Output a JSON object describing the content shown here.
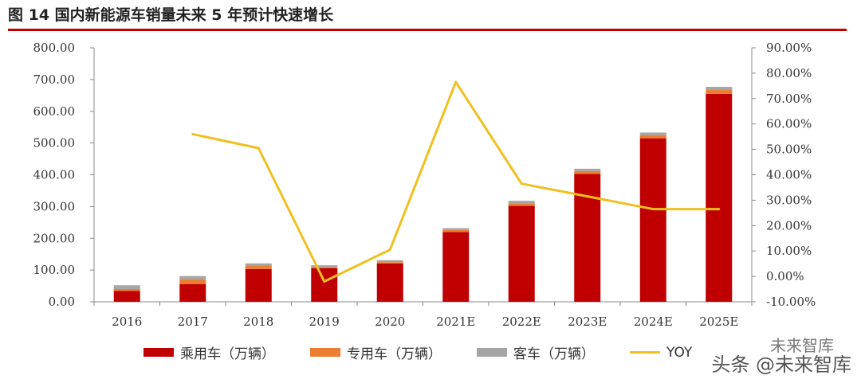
{
  "title": "图  14  国内新能源车销量未来 5 年预计快速增长",
  "watermark": "头条 @未来智库",
  "watermark_top": "未来智库",
  "colors": {
    "passenger": "#c00000",
    "special": "#ed7d31",
    "bus": "#a5a5a5",
    "yoy": "#f0c020",
    "rule": "#c00000"
  },
  "chart_data": {
    "type": "bar",
    "categories": [
      "2016",
      "2017",
      "2018",
      "2019",
      "2020",
      "2021E",
      "2022E",
      "2023E",
      "2024E",
      "2025E"
    ],
    "series": [
      {
        "name": "乘用车（万辆）",
        "values": [
          34,
          56,
          103,
          106,
          121,
          220,
          302,
          403,
          515,
          655
        ]
      },
      {
        "name": "专用车（万辆）",
        "values": [
          6,
          15,
          12,
          4,
          4,
          6,
          8,
          9,
          10,
          12
        ]
      },
      {
        "name": "客车（万辆）",
        "values": [
          12,
          10,
          6,
          5,
          6,
          6,
          8,
          7,
          8,
          10
        ]
      },
      {
        "name": "YOY",
        "axis": "right",
        "type": "line",
        "values": [
          null,
          56,
          50.5,
          -2,
          10.5,
          76.5,
          36.5,
          31.5,
          26.5,
          26.5
        ]
      }
    ],
    "ylim": [
      0,
      800
    ],
    "y_ticks": [
      "800.00",
      "700.00",
      "600.00",
      "500.00",
      "400.00",
      "300.00",
      "200.00",
      "100.00",
      "0.00"
    ],
    "y2lim": [
      -10,
      90
    ],
    "y2_ticks": [
      "90.00%",
      "80.00%",
      "70.00%",
      "60.00%",
      "50.00%",
      "40.00%",
      "30.00%",
      "20.00%",
      "10.00%",
      "0.00%",
      "-10.00%"
    ],
    "stacked": true,
    "grid": false,
    "legend_position": "bottom"
  }
}
